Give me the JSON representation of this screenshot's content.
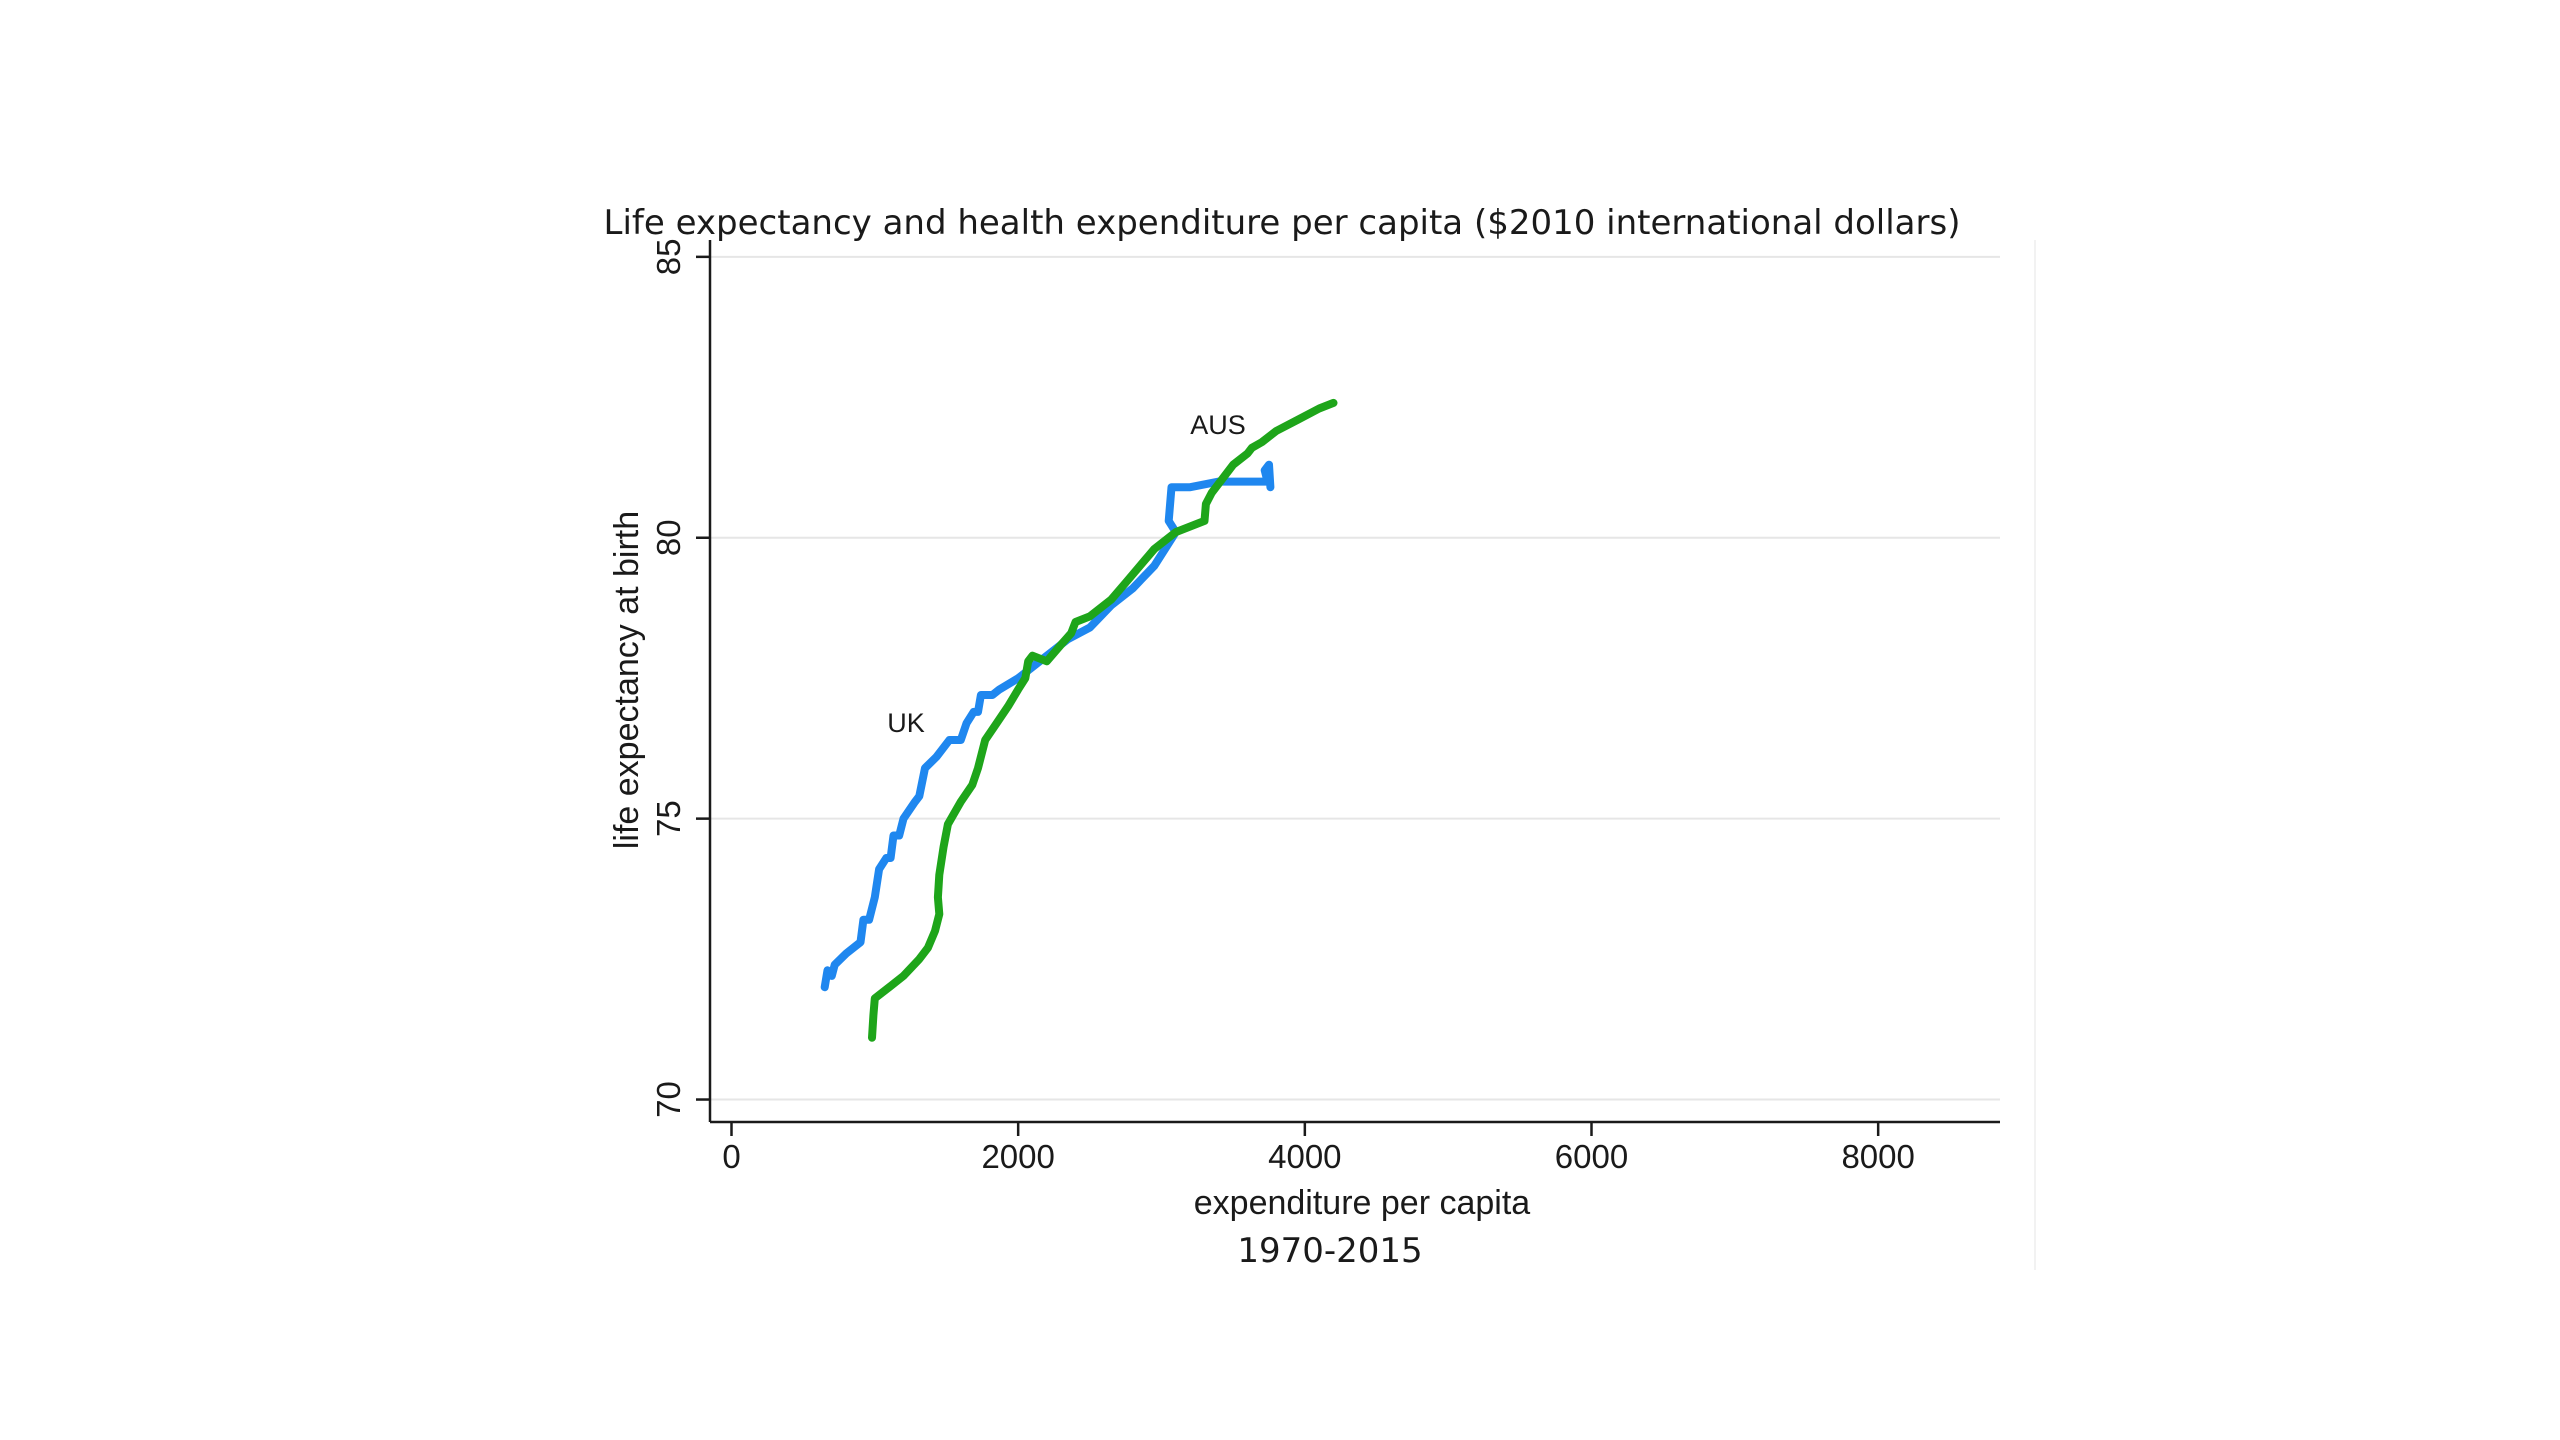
{
  "chart_data": {
    "type": "line",
    "title": "Life expectancy and health expenditure per capita ($2010 international dollars)",
    "subtitle": "1970-2015",
    "xlabel": "expenditure per capita",
    "ylabel": "life expectancy at birth",
    "xlim": [
      -150,
      8850
    ],
    "ylim": [
      69.6,
      85.3
    ],
    "xticks": [
      0,
      2000,
      4000,
      6000,
      8000
    ],
    "yticks": [
      70,
      75,
      80,
      85
    ],
    "grid": true,
    "legend": "none",
    "annotations": [
      {
        "text": "UK",
        "series": "UK"
      },
      {
        "text": "AUS",
        "series": "AUS"
      }
    ],
    "series": [
      {
        "name": "UK",
        "color": "#1f87ef",
        "points": [
          [
            650,
            72.0
          ],
          [
            670,
            72.3
          ],
          [
            700,
            72.2
          ],
          [
            720,
            72.4
          ],
          [
            800,
            72.6
          ],
          [
            900,
            72.8
          ],
          [
            920,
            73.2
          ],
          [
            960,
            73.2
          ],
          [
            1000,
            73.6
          ],
          [
            1030,
            74.1
          ],
          [
            1080,
            74.3
          ],
          [
            1110,
            74.3
          ],
          [
            1130,
            74.7
          ],
          [
            1170,
            74.7
          ],
          [
            1200,
            75.0
          ],
          [
            1280,
            75.3
          ],
          [
            1310,
            75.4
          ],
          [
            1350,
            75.9
          ],
          [
            1430,
            76.1
          ],
          [
            1520,
            76.4
          ],
          [
            1600,
            76.4
          ],
          [
            1640,
            76.7
          ],
          [
            1690,
            76.9
          ],
          [
            1720,
            76.9
          ],
          [
            1740,
            77.2
          ],
          [
            1820,
            77.2
          ],
          [
            1870,
            77.3
          ],
          [
            2000,
            77.5
          ],
          [
            2150,
            77.8
          ],
          [
            2250,
            78.0
          ],
          [
            2350,
            78.2
          ],
          [
            2500,
            78.4
          ],
          [
            2650,
            78.8
          ],
          [
            2800,
            79.1
          ],
          [
            2950,
            79.5
          ],
          [
            3100,
            80.1
          ],
          [
            3050,
            80.3
          ],
          [
            3070,
            80.9
          ],
          [
            3100,
            80.9
          ],
          [
            3200,
            80.9
          ],
          [
            3400,
            81.0
          ],
          [
            3740,
            81.0
          ],
          [
            3720,
            81.2
          ],
          [
            3750,
            81.3
          ],
          [
            3760,
            80.9
          ]
        ]
      },
      {
        "name": "AUS",
        "color": "#1ea51a",
        "points": [
          [
            980,
            71.1
          ],
          [
            990,
            71.5
          ],
          [
            1000,
            71.8
          ],
          [
            1100,
            72.0
          ],
          [
            1200,
            72.2
          ],
          [
            1310,
            72.5
          ],
          [
            1370,
            72.7
          ],
          [
            1420,
            73.0
          ],
          [
            1450,
            73.3
          ],
          [
            1440,
            73.6
          ],
          [
            1450,
            74.0
          ],
          [
            1480,
            74.5
          ],
          [
            1510,
            74.9
          ],
          [
            1600,
            75.3
          ],
          [
            1680,
            75.6
          ],
          [
            1720,
            75.9
          ],
          [
            1770,
            76.4
          ],
          [
            1850,
            76.7
          ],
          [
            1930,
            77.0
          ],
          [
            2000,
            77.3
          ],
          [
            2050,
            77.5
          ],
          [
            2070,
            77.8
          ],
          [
            2100,
            77.9
          ],
          [
            2200,
            77.8
          ],
          [
            2300,
            78.1
          ],
          [
            2370,
            78.3
          ],
          [
            2400,
            78.5
          ],
          [
            2500,
            78.6
          ],
          [
            2650,
            78.9
          ],
          [
            2750,
            79.2
          ],
          [
            2850,
            79.5
          ],
          [
            2950,
            79.8
          ],
          [
            3100,
            80.1
          ],
          [
            3300,
            80.3
          ],
          [
            3310,
            80.6
          ],
          [
            3350,
            80.8
          ],
          [
            3500,
            81.3
          ],
          [
            3600,
            81.5
          ],
          [
            3630,
            81.6
          ],
          [
            3700,
            81.7
          ],
          [
            3800,
            81.9
          ],
          [
            3950,
            82.1
          ],
          [
            4100,
            82.3
          ],
          [
            4200,
            82.4
          ]
        ]
      }
    ]
  }
}
